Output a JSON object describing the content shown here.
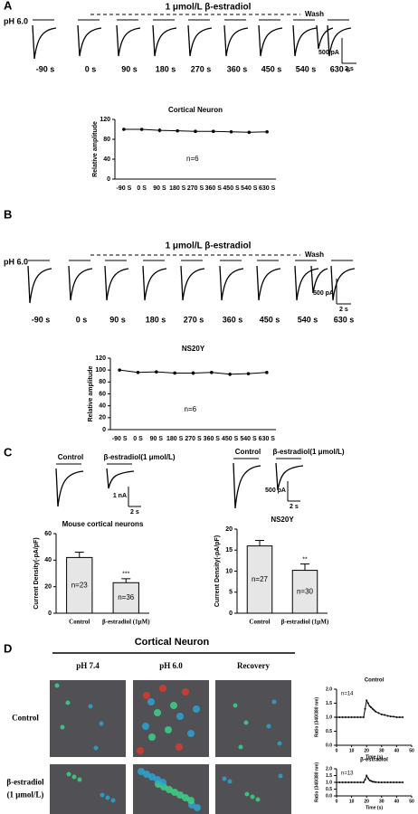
{
  "panel_a": {
    "label": "A",
    "treatment": "1 μmol/L β-estradiol",
    "wash": "Wash",
    "ph": "pH 6.0",
    "times": [
      "-90 s",
      "0 s",
      "90 s",
      "180 s",
      "270 s",
      "360 s",
      "450 s",
      "540 s",
      "630 s"
    ],
    "scale_current": "500 pA",
    "scale_time": "2 s"
  },
  "panel_b": {
    "label": "B",
    "treatment": "1 μmol/L β-estradiol",
    "wash": "Wash",
    "ph": "pH 6.0",
    "times": [
      "-90 s",
      "0 s",
      "90 s",
      "180 s",
      "270 s",
      "360 s",
      "450 s",
      "540 s",
      "630 s"
    ],
    "scale_current": "500 pA",
    "scale_time": "2 s"
  },
  "panel_c": {
    "label": "C",
    "left": {
      "control": "Control",
      "treatment": "β-estradiol(1 μmol/L)",
      "scale_current": "1 nA",
      "scale_time": "2 s"
    },
    "right": {
      "control": "Control",
      "treatment": "β-estradiol(1 μmol/L)",
      "scale_current": "500 pA",
      "scale_time": "2 s"
    }
  },
  "panel_d": {
    "label": "D",
    "title": "Cortical Neuron",
    "columns": [
      "pH 7.4",
      "pH 6.0",
      "Recovery"
    ],
    "rows": [
      {
        "lines": [
          "Control"
        ]
      },
      {
        "lines": [
          "β-estradiol",
          "(1 μmol/L)"
        ]
      }
    ]
  },
  "chart_data": [
    {
      "type": "line",
      "title": "Cortical Neuron",
      "ylabel": "Relative amplitude",
      "annotation": "n=6",
      "categories": [
        "-90 S",
        "0 S",
        "90 S",
        "180 S",
        "270 S",
        "360 S",
        "450 S",
        "540 S",
        "630 S"
      ],
      "values": [
        100,
        100,
        98,
        97,
        96,
        96,
        95,
        94,
        95
      ],
      "errors": [
        1,
        1,
        4,
        3,
        3,
        3,
        2,
        3,
        1
      ],
      "color": "#000000",
      "ylim": [
        0,
        120
      ],
      "yticks": [
        0,
        40,
        80,
        120
      ]
    },
    {
      "type": "line",
      "title": "NS20Y",
      "ylabel": "Relative amplitude",
      "annotation": "n=6",
      "categories": [
        "-90 S",
        "0 S",
        "90 S",
        "180 S",
        "270 S",
        "360 S",
        "450 S",
        "540 S",
        "630 S"
      ],
      "values": [
        100,
        96,
        97,
        95,
        95,
        96,
        93,
        94,
        96
      ],
      "errors": [
        1,
        1,
        1,
        2,
        3,
        1,
        3,
        2,
        2
      ],
      "color": "#000000",
      "ylim": [
        0,
        120
      ],
      "yticks": [
        0,
        20,
        40,
        60,
        80,
        100,
        120
      ]
    },
    {
      "type": "bar",
      "title": "Mouse cortical neurons",
      "ylabel": "Current Density(-pA/pF)",
      "categories": [
        "Control",
        "β-estradiol (1μM)"
      ],
      "values": [
        42,
        23
      ],
      "errors": [
        4,
        3
      ],
      "n_labels": [
        "n=23",
        "n=36"
      ],
      "significance": [
        null,
        "***"
      ],
      "color": "#e6e6e6",
      "ylim": [
        0,
        60
      ],
      "yticks": [
        0,
        20,
        40,
        60
      ]
    },
    {
      "type": "bar",
      "title": "NS20Y",
      "ylabel": "Current Density(-pA/pF)",
      "categories": [
        "Control",
        "β-estradiol (1μM)"
      ],
      "values": [
        16,
        10.2
      ],
      "errors": [
        1.3,
        1.5
      ],
      "n_labels": [
        "n=27",
        "n=30"
      ],
      "significance": [
        null,
        "**"
      ],
      "color": "#e6e6e6",
      "ylim": [
        0,
        20
      ],
      "yticks": [
        0,
        5,
        10,
        15,
        20
      ]
    },
    {
      "type": "line",
      "title": "Control",
      "xlabel": "Time (s)",
      "ylabel": "Ratio (340/380 nm)",
      "annotation": "n=14",
      "x": [
        0,
        2,
        4,
        6,
        8,
        10,
        12,
        14,
        16,
        18,
        19,
        20,
        21,
        22,
        23,
        24,
        25,
        26,
        28,
        30,
        32,
        34,
        36,
        38,
        40,
        42,
        44
      ],
      "values": [
        1,
        1,
        1,
        1,
        1,
        1,
        1,
        1,
        1,
        1,
        1.3,
        1.6,
        1.5,
        1.4,
        1.35,
        1.3,
        1.25,
        1.2,
        1.15,
        1.1,
        1.08,
        1.05,
        1.03,
        1.02,
        1,
        1,
        1
      ],
      "color": "#000000",
      "xlim": [
        0,
        50
      ],
      "xticks": [
        0,
        10,
        20,
        30,
        40,
        50
      ],
      "ylim": [
        0,
        2
      ],
      "yticks": [
        {
          "value": 0,
          "label": "0.0"
        },
        {
          "value": 0.5,
          "label": "0.5"
        },
        {
          "value": 1,
          "label": "1.0"
        },
        {
          "value": 1.5,
          "label": "1.5"
        },
        {
          "value": 2,
          "label": "2.0"
        }
      ]
    },
    {
      "type": "line",
      "title": "β-estradiol",
      "xlabel": "Time (s)",
      "ylabel": "Ratio (340/380 nm)",
      "annotation": "n=13",
      "x": [
        0,
        2,
        4,
        6,
        8,
        10,
        12,
        14,
        16,
        18,
        19,
        20,
        21,
        22,
        23,
        24,
        25,
        26,
        28,
        30,
        32,
        34,
        36,
        38,
        40,
        42,
        44
      ],
      "values": [
        1,
        1,
        1,
        1,
        1,
        1,
        1,
        1,
        1,
        1,
        1.2,
        1.5,
        1.3,
        1.15,
        1.1,
        1.05,
        1.03,
        1.02,
        1,
        1,
        1,
        1,
        1,
        1,
        1,
        1,
        1
      ],
      "color": "#000000",
      "xlim": [
        0,
        50
      ],
      "xticks": [
        0,
        10,
        20,
        30,
        40,
        50
      ],
      "ylim": [
        0,
        2
      ],
      "yticks": [
        {
          "value": 0,
          "label": "0.0"
        },
        {
          "value": 0.5,
          "label": "0.5"
        },
        {
          "value": 1,
          "label": "1.0"
        },
        {
          "value": 1.5,
          "label": "1.5"
        },
        {
          "value": 2,
          "label": "2.0"
        }
      ]
    }
  ]
}
